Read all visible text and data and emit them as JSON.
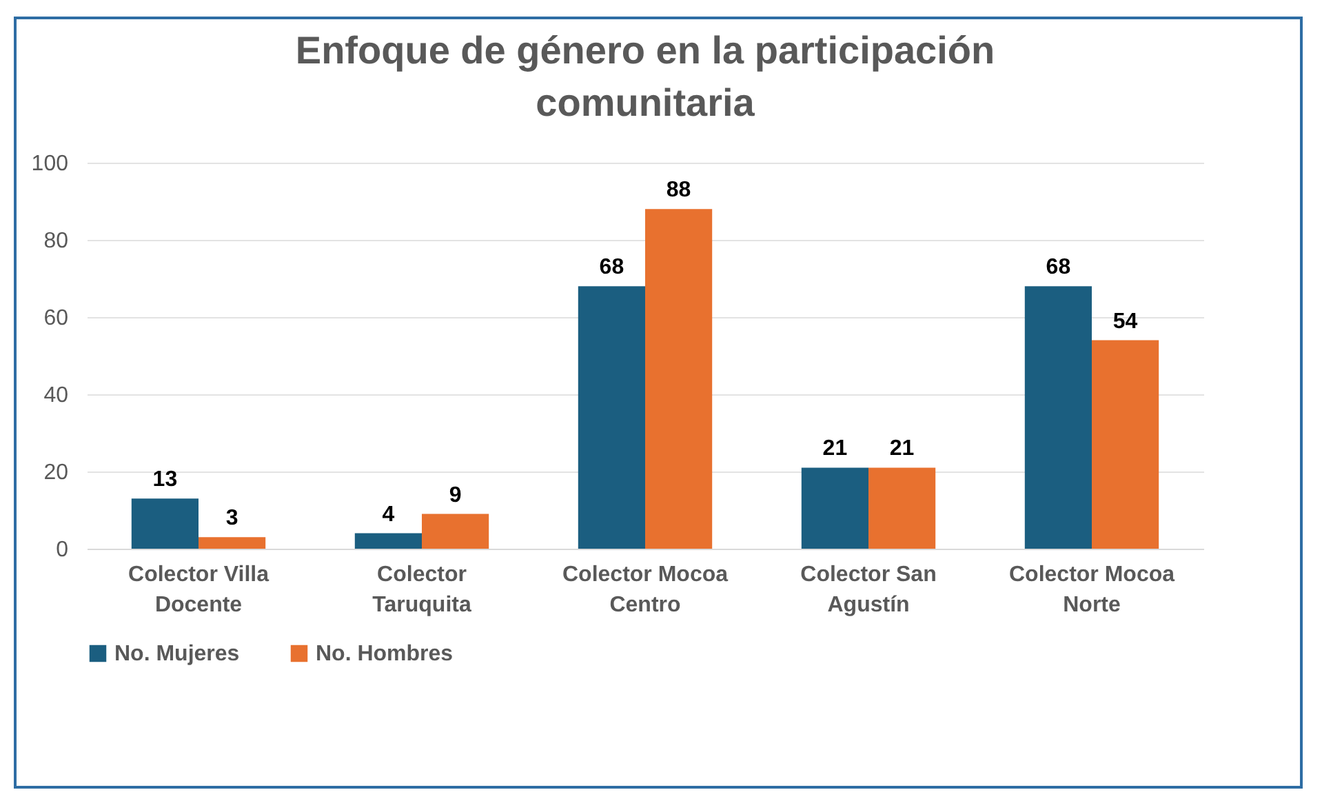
{
  "chart_data": {
    "type": "bar",
    "title": "Enfoque de género en la  participación comunitaria",
    "categories": [
      "Colector Villa Docente",
      "Colector Taruquita",
      "Colector Mocoa Centro",
      "Colector San Agustín",
      "Colector Mocoa Norte"
    ],
    "series": [
      {
        "name": "No.  Mujeres",
        "color": "#1b5e80",
        "values": [
          13,
          4,
          68,
          21,
          68
        ]
      },
      {
        "name": "No.  Hombres",
        "color": "#e8712f",
        "values": [
          3,
          9,
          88,
          21,
          54
        ]
      }
    ],
    "ylim": [
      0,
      100
    ],
    "yticks": [
      0,
      20,
      40,
      60,
      80,
      100
    ],
    "grid": "y",
    "legend": "bottom",
    "data_labels": true
  }
}
